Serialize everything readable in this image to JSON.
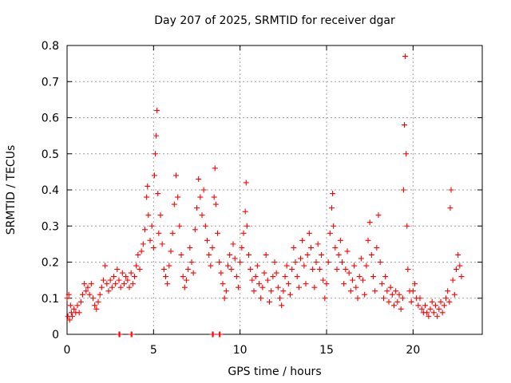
{
  "chart_data": {
    "type": "scatter",
    "title": "Day 207 of 2025, SRMTID for receiver dgar",
    "xlabel": "GPS time / hours",
    "ylabel": "SRMTID / TECUs",
    "xlim": [
      0,
      24
    ],
    "ylim": [
      0,
      0.8
    ],
    "xticks": [
      0,
      5,
      10,
      15,
      20
    ],
    "yticks": [
      0,
      0.1,
      0.2,
      0.3,
      0.4,
      0.5,
      0.6,
      0.7,
      0.8
    ],
    "xtick_labels": [
      "0",
      "5",
      "10",
      "15",
      "20"
    ],
    "ytick_labels": [
      "0",
      "0.1",
      "0.2",
      "0.3",
      "0.4",
      "0.5",
      "0.6",
      "0.7",
      "0.8"
    ],
    "grid": true,
    "marker": "+",
    "series": [
      {
        "name": "SRMTID",
        "color": "#ff0000",
        "points": [
          [
            0.0,
            0.1
          ],
          [
            0.05,
            0.05
          ],
          [
            0.1,
            0.11
          ],
          [
            0.15,
            0.04
          ],
          [
            0.2,
            0.08
          ],
          [
            0.25,
            0.06
          ],
          [
            0.3,
            0.05
          ],
          [
            0.4,
            0.07
          ],
          [
            0.5,
            0.06
          ],
          [
            0.6,
            0.08
          ],
          [
            0.7,
            0.06
          ],
          [
            0.8,
            0.09
          ],
          [
            0.9,
            0.11
          ],
          [
            1.0,
            0.14
          ],
          [
            1.1,
            0.12
          ],
          [
            1.2,
            0.13
          ],
          [
            1.3,
            0.11
          ],
          [
            1.4,
            0.14
          ],
          [
            1.5,
            0.1
          ],
          [
            1.6,
            0.08
          ],
          [
            1.7,
            0.07
          ],
          [
            1.8,
            0.09
          ],
          [
            1.9,
            0.11
          ],
          [
            2.0,
            0.13
          ],
          [
            2.1,
            0.15
          ],
          [
            2.2,
            0.19
          ],
          [
            2.3,
            0.14
          ],
          [
            2.4,
            0.12
          ],
          [
            2.5,
            0.15
          ],
          [
            2.6,
            0.13
          ],
          [
            2.7,
            0.16
          ],
          [
            2.8,
            0.14
          ],
          [
            2.9,
            0.18
          ],
          [
            3.0,
            0.15
          ],
          [
            3.1,
            0.13
          ],
          [
            3.2,
            0.17
          ],
          [
            3.3,
            0.14
          ],
          [
            3.4,
            0.16
          ],
          [
            3.5,
            0.15
          ],
          [
            3.6,
            0.13
          ],
          [
            3.7,
            0.17
          ],
          [
            3.8,
            0.14
          ],
          [
            3.9,
            0.16
          ],
          [
            4.0,
            0.19
          ],
          [
            4.1,
            0.22
          ],
          [
            4.2,
            0.18
          ],
          [
            4.3,
            0.23
          ],
          [
            4.4,
            0.25
          ],
          [
            4.5,
            0.29
          ],
          [
            4.6,
            0.38
          ],
          [
            4.65,
            0.41
          ],
          [
            4.7,
            0.33
          ],
          [
            4.8,
            0.26
          ],
          [
            4.9,
            0.3
          ],
          [
            5.0,
            0.24
          ],
          [
            5.05,
            0.44
          ],
          [
            5.1,
            0.5
          ],
          [
            5.15,
            0.55
          ],
          [
            5.2,
            0.62
          ],
          [
            5.25,
            0.39
          ],
          [
            5.3,
            0.28
          ],
          [
            5.4,
            0.33
          ],
          [
            5.5,
            0.25
          ],
          [
            5.6,
            0.18
          ],
          [
            5.7,
            0.16
          ],
          [
            5.8,
            0.14
          ],
          [
            5.9,
            0.19
          ],
          [
            6.0,
            0.23
          ],
          [
            6.1,
            0.28
          ],
          [
            6.2,
            0.36
          ],
          [
            6.3,
            0.44
          ],
          [
            6.4,
            0.38
          ],
          [
            6.5,
            0.3
          ],
          [
            6.6,
            0.22
          ],
          [
            6.7,
            0.16
          ],
          [
            6.8,
            0.13
          ],
          [
            6.9,
            0.15
          ],
          [
            7.0,
            0.18
          ],
          [
            7.1,
            0.24
          ],
          [
            7.2,
            0.2
          ],
          [
            7.3,
            0.17
          ],
          [
            7.4,
            0.29
          ],
          [
            7.5,
            0.35
          ],
          [
            7.6,
            0.43
          ],
          [
            7.7,
            0.38
          ],
          [
            7.8,
            0.33
          ],
          [
            7.9,
            0.4
          ],
          [
            8.0,
            0.3
          ],
          [
            8.1,
            0.26
          ],
          [
            8.2,
            0.22
          ],
          [
            8.3,
            0.19
          ],
          [
            8.4,
            0.24
          ],
          [
            8.5,
            0.38
          ],
          [
            8.55,
            0.46
          ],
          [
            8.6,
            0.36
          ],
          [
            8.7,
            0.28
          ],
          [
            8.8,
            0.2
          ],
          [
            8.9,
            0.17
          ],
          [
            9.0,
            0.14
          ],
          [
            9.1,
            0.1
          ],
          [
            9.2,
            0.12
          ],
          [
            9.3,
            0.19
          ],
          [
            9.4,
            0.22
          ],
          [
            9.5,
            0.18
          ],
          [
            9.6,
            0.25
          ],
          [
            9.7,
            0.21
          ],
          [
            9.8,
            0.16
          ],
          [
            9.9,
            0.13
          ],
          [
            10.0,
            0.2
          ],
          [
            10.1,
            0.24
          ],
          [
            10.2,
            0.28
          ],
          [
            10.3,
            0.34
          ],
          [
            10.35,
            0.42
          ],
          [
            10.4,
            0.3
          ],
          [
            10.5,
            0.22
          ],
          [
            10.6,
            0.18
          ],
          [
            10.7,
            0.15
          ],
          [
            10.8,
            0.12
          ],
          [
            10.9,
            0.16
          ],
          [
            11.0,
            0.19
          ],
          [
            11.1,
            0.14
          ],
          [
            11.2,
            0.1
          ],
          [
            11.3,
            0.13
          ],
          [
            11.4,
            0.17
          ],
          [
            11.5,
            0.22
          ],
          [
            11.6,
            0.15
          ],
          [
            11.7,
            0.09
          ],
          [
            11.8,
            0.12
          ],
          [
            11.9,
            0.16
          ],
          [
            12.0,
            0.2
          ],
          [
            12.1,
            0.17
          ],
          [
            12.2,
            0.13
          ],
          [
            12.3,
            0.1
          ],
          [
            12.4,
            0.08
          ],
          [
            12.5,
            0.12
          ],
          [
            12.6,
            0.16
          ],
          [
            12.7,
            0.19
          ],
          [
            12.8,
            0.14
          ],
          [
            12.9,
            0.11
          ],
          [
            13.0,
            0.18
          ],
          [
            13.1,
            0.24
          ],
          [
            13.2,
            0.2
          ],
          [
            13.3,
            0.16
          ],
          [
            13.4,
            0.13
          ],
          [
            13.5,
            0.21
          ],
          [
            13.6,
            0.26
          ],
          [
            13.7,
            0.19
          ],
          [
            13.8,
            0.14
          ],
          [
            13.9,
            0.22
          ],
          [
            14.0,
            0.28
          ],
          [
            14.1,
            0.24
          ],
          [
            14.2,
            0.18
          ],
          [
            14.3,
            0.13
          ],
          [
            14.4,
            0.2
          ],
          [
            14.5,
            0.25
          ],
          [
            14.6,
            0.18
          ],
          [
            14.7,
            0.22
          ],
          [
            14.8,
            0.15
          ],
          [
            14.9,
            0.1
          ],
          [
            15.0,
            0.14
          ],
          [
            15.1,
            0.2
          ],
          [
            15.2,
            0.28
          ],
          [
            15.3,
            0.35
          ],
          [
            15.35,
            0.39
          ],
          [
            15.4,
            0.3
          ],
          [
            15.5,
            0.24
          ],
          [
            15.6,
            0.18
          ],
          [
            15.7,
            0.22
          ],
          [
            15.8,
            0.26
          ],
          [
            15.9,
            0.2
          ],
          [
            16.0,
            0.14
          ],
          [
            16.1,
            0.18
          ],
          [
            16.2,
            0.23
          ],
          [
            16.3,
            0.17
          ],
          [
            16.4,
            0.12
          ],
          [
            16.5,
            0.15
          ],
          [
            16.6,
            0.19
          ],
          [
            16.7,
            0.13
          ],
          [
            16.8,
            0.1
          ],
          [
            16.9,
            0.16
          ],
          [
            17.0,
            0.21
          ],
          [
            17.1,
            0.15
          ],
          [
            17.2,
            0.11
          ],
          [
            17.3,
            0.19
          ],
          [
            17.4,
            0.26
          ],
          [
            17.5,
            0.31
          ],
          [
            17.6,
            0.22
          ],
          [
            17.7,
            0.16
          ],
          [
            17.8,
            0.12
          ],
          [
            17.9,
            0.24
          ],
          [
            18.0,
            0.33
          ],
          [
            18.1,
            0.2
          ],
          [
            18.2,
            0.14
          ],
          [
            18.3,
            0.1
          ],
          [
            18.4,
            0.16
          ],
          [
            18.5,
            0.12
          ],
          [
            18.6,
            0.09
          ],
          [
            18.7,
            0.13
          ],
          [
            18.8,
            0.11
          ],
          [
            18.9,
            0.08
          ],
          [
            19.0,
            0.12
          ],
          [
            19.1,
            0.09
          ],
          [
            19.2,
            0.11
          ],
          [
            19.3,
            0.07
          ],
          [
            19.4,
            0.1
          ],
          [
            19.45,
            0.4
          ],
          [
            19.5,
            0.58
          ],
          [
            19.55,
            0.77
          ],
          [
            19.6,
            0.5
          ],
          [
            19.65,
            0.3
          ],
          [
            19.7,
            0.18
          ],
          [
            19.8,
            0.12
          ],
          [
            19.9,
            0.09
          ],
          [
            20.0,
            0.12
          ],
          [
            20.1,
            0.14
          ],
          [
            20.2,
            0.1
          ],
          [
            20.3,
            0.08
          ],
          [
            20.4,
            0.1
          ],
          [
            20.5,
            0.07
          ],
          [
            20.6,
            0.06
          ],
          [
            20.7,
            0.08
          ],
          [
            20.8,
            0.06
          ],
          [
            20.9,
            0.05
          ],
          [
            21.0,
            0.07
          ],
          [
            21.1,
            0.09
          ],
          [
            21.2,
            0.06
          ],
          [
            21.3,
            0.08
          ],
          [
            21.4,
            0.05
          ],
          [
            21.5,
            0.07
          ],
          [
            21.6,
            0.09
          ],
          [
            21.7,
            0.06
          ],
          [
            21.8,
            0.08
          ],
          [
            21.9,
            0.1
          ],
          [
            22.0,
            0.12
          ],
          [
            22.1,
            0.09
          ],
          [
            22.15,
            0.35
          ],
          [
            22.2,
            0.4
          ],
          [
            22.3,
            0.15
          ],
          [
            22.4,
            0.11
          ],
          [
            22.5,
            0.18
          ],
          [
            22.6,
            0.22
          ],
          [
            22.7,
            0.19
          ],
          [
            22.8,
            0.16
          ]
        ]
      }
    ],
    "zero_points_x": [
      3.0,
      3.05,
      3.7,
      3.75,
      8.4,
      8.45,
      8.8,
      8.85
    ]
  }
}
